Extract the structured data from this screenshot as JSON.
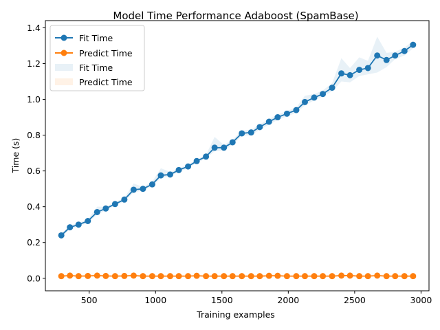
{
  "chart_data": {
    "type": "line",
    "title": "Model Time Performance Adaboost (SpamBase)",
    "xlabel": "Training examples",
    "ylabel": "Time (s)",
    "xlim": [
      170,
      3060
    ],
    "ylim": [
      -0.07,
      1.44
    ],
    "xticks": [
      500,
      1000,
      1500,
      2000,
      2500,
      3000
    ],
    "yticks": [
      0.0,
      0.2,
      0.4,
      0.6,
      0.8,
      1.0,
      1.2,
      1.4
    ],
    "grid": false,
    "legend_position": "top-left",
    "legend": [
      "Fit Time",
      "Predict Time",
      "Fit Time",
      "Predict Time"
    ],
    "x": [
      290,
      355,
      420,
      490,
      560,
      625,
      695,
      765,
      835,
      905,
      975,
      1040,
      1110,
      1175,
      1245,
      1310,
      1380,
      1445,
      1515,
      1580,
      1650,
      1720,
      1785,
      1855,
      1920,
      1990,
      2060,
      2125,
      2195,
      2260,
      2330,
      2400,
      2465,
      2535,
      2600,
      2670,
      2740,
      2805,
      2875,
      2940
    ],
    "series": [
      {
        "name": "Fit Time",
        "color": "#1f77b4",
        "band_color": "#1f77b4",
        "values": [
          0.24,
          0.285,
          0.3,
          0.32,
          0.37,
          0.39,
          0.415,
          0.44,
          0.495,
          0.5,
          0.525,
          0.575,
          0.58,
          0.605,
          0.625,
          0.655,
          0.68,
          0.73,
          0.73,
          0.76,
          0.81,
          0.815,
          0.845,
          0.875,
          0.9,
          0.92,
          0.94,
          0.985,
          1.01,
          1.03,
          1.065,
          1.145,
          1.135,
          1.165,
          1.175,
          1.245,
          1.22,
          1.245,
          1.27,
          1.305
        ],
        "band_lower": [
          0.23,
          0.275,
          0.29,
          0.31,
          0.355,
          0.38,
          0.405,
          0.43,
          0.48,
          0.49,
          0.515,
          0.56,
          0.57,
          0.595,
          0.615,
          0.645,
          0.67,
          0.71,
          0.715,
          0.745,
          0.795,
          0.8,
          0.83,
          0.86,
          0.885,
          0.905,
          0.925,
          0.965,
          0.995,
          1.015,
          1.045,
          1.1,
          1.095,
          1.13,
          1.14,
          1.15,
          1.18,
          1.225,
          1.245,
          1.285
        ],
        "band_upper": [
          0.25,
          0.295,
          0.31,
          0.33,
          0.4,
          0.4,
          0.425,
          0.45,
          0.53,
          0.51,
          0.54,
          0.615,
          0.595,
          0.615,
          0.635,
          0.665,
          0.69,
          0.79,
          0.745,
          0.775,
          0.825,
          0.83,
          0.86,
          0.89,
          0.915,
          0.935,
          0.955,
          1.02,
          1.03,
          1.05,
          1.09,
          1.23,
          1.175,
          1.235,
          1.215,
          1.35,
          1.26,
          1.265,
          1.29,
          1.325
        ]
      },
      {
        "name": "Predict Time",
        "color": "#ff7f0e",
        "band_color": "#ff7f0e",
        "values": [
          0.012,
          0.015,
          0.012,
          0.013,
          0.015,
          0.013,
          0.012,
          0.013,
          0.015,
          0.012,
          0.012,
          0.012,
          0.012,
          0.012,
          0.012,
          0.014,
          0.012,
          0.012,
          0.012,
          0.012,
          0.012,
          0.012,
          0.012,
          0.014,
          0.014,
          0.012,
          0.012,
          0.012,
          0.012,
          0.012,
          0.012,
          0.015,
          0.015,
          0.012,
          0.012,
          0.015,
          0.012,
          0.012,
          0.012,
          0.012
        ],
        "band_lower": [
          0.01,
          0.012,
          0.01,
          0.011,
          0.012,
          0.011,
          0.01,
          0.011,
          0.012,
          0.01,
          0.01,
          0.01,
          0.01,
          0.01,
          0.01,
          0.011,
          0.01,
          0.01,
          0.01,
          0.01,
          0.01,
          0.01,
          0.01,
          0.011,
          0.011,
          0.01,
          0.01,
          0.01,
          0.01,
          0.01,
          0.01,
          0.012,
          0.012,
          0.01,
          0.01,
          0.012,
          0.01,
          0.01,
          0.01,
          0.01
        ],
        "band_upper": [
          0.014,
          0.018,
          0.014,
          0.015,
          0.018,
          0.015,
          0.014,
          0.015,
          0.018,
          0.014,
          0.014,
          0.014,
          0.014,
          0.014,
          0.014,
          0.017,
          0.014,
          0.014,
          0.014,
          0.014,
          0.014,
          0.014,
          0.014,
          0.017,
          0.017,
          0.014,
          0.014,
          0.014,
          0.014,
          0.014,
          0.014,
          0.018,
          0.018,
          0.014,
          0.014,
          0.018,
          0.014,
          0.014,
          0.014,
          0.014
        ]
      }
    ]
  }
}
